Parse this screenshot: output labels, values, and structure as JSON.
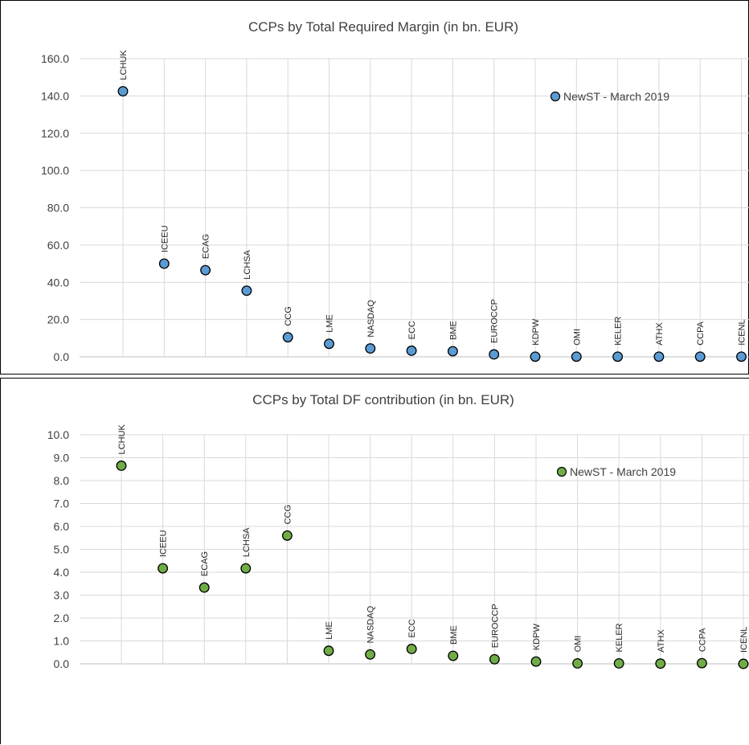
{
  "chart_data": [
    {
      "type": "scatter",
      "title": "CCPs by Total Required Margin (in bn. EUR)",
      "categories": [
        "LCHUK",
        "ICEEU",
        "ECAG",
        "LCHSA",
        "CCG",
        "LME",
        "NASDAQ",
        "ECC",
        "BME",
        "EUROCCP",
        "KDPW",
        "OMI",
        "KELER",
        "ATHX",
        "CCPA",
        "ICENL"
      ],
      "series": [
        {
          "name": "NewST - March 2019",
          "values": [
            142.5,
            50.0,
            46.5,
            35.5,
            10.5,
            7.0,
            4.5,
            3.3,
            3.0,
            1.3,
            0.1,
            0.1,
            0.1,
            0.1,
            0.1,
            0.1
          ]
        }
      ],
      "ylim": [
        0,
        160
      ],
      "yticks": [
        "0.0",
        "20.0",
        "40.0",
        "60.0",
        "80.0",
        "100.0",
        "120.0",
        "140.0",
        "160.0"
      ],
      "xlabel": "",
      "ylabel": "",
      "grid": true,
      "legend": "top-right",
      "marker_color": "#5b9bd5"
    },
    {
      "type": "scatter",
      "title": "CCPs by Total DF contribution (in bn. EUR)",
      "categories": [
        "LCHUK",
        "ICEEU",
        "ECAG",
        "LCHSA",
        "CCG",
        "LME",
        "NASDAQ",
        "ECC",
        "BME",
        "EUROCCP",
        "KDPW",
        "OMI",
        "KELER",
        "ATHX",
        "CCPA",
        "ICENL"
      ],
      "series": [
        {
          "name": "NewST - March 2019",
          "values": [
            8.65,
            4.17,
            3.33,
            4.17,
            5.6,
            0.57,
            0.41,
            0.65,
            0.35,
            0.2,
            0.1,
            0.02,
            0.02,
            0.01,
            0.03,
            0.0
          ]
        }
      ],
      "ylim": [
        0,
        10
      ],
      "yticks": [
        "0.0",
        "1.0",
        "2.0",
        "3.0",
        "4.0",
        "5.0",
        "6.0",
        "7.0",
        "8.0",
        "9.0",
        "10.0"
      ],
      "xlabel": "",
      "ylabel": "",
      "grid": true,
      "legend": "top-right",
      "marker_color": "#70ad47"
    }
  ]
}
